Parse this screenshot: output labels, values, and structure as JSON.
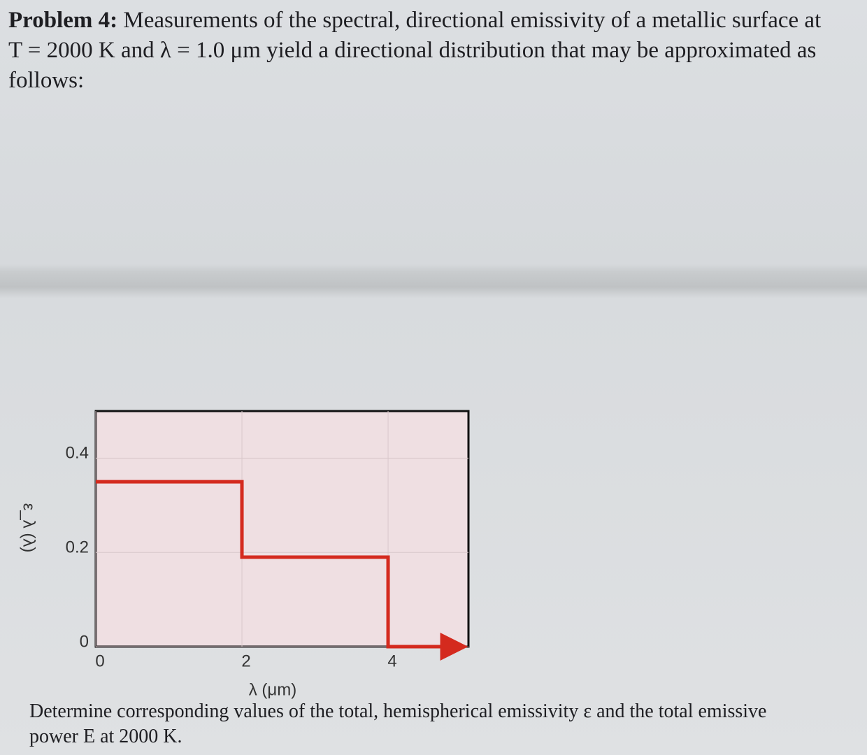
{
  "problem": {
    "label": "Problem 4:",
    "text": "Measurements of the spectral, directional emissivity of a metallic surface at T = 2000 K and λ = 1.0 μm yield a directional distribution that may be approximated as follows:"
  },
  "chart_data": {
    "type": "line",
    "x": [
      0,
      2,
      2,
      4,
      4,
      5
    ],
    "values": [
      0.35,
      0.35,
      0.19,
      0.19,
      0,
      0
    ],
    "color": "#d42a1e",
    "xlim": [
      0,
      5.1
    ],
    "xticks": [
      0,
      2,
      4
    ],
    "ylim": [
      0,
      0.5
    ],
    "yticks": [
      0,
      0.2,
      0.4
    ],
    "grid": true,
    "xlabel": "λ (μm)",
    "ylabel": "ε_λ (λ)"
  },
  "question": "Determine corresponding values of the total, hemispherical emissivity ε and the total emissive power E at 2000 K."
}
